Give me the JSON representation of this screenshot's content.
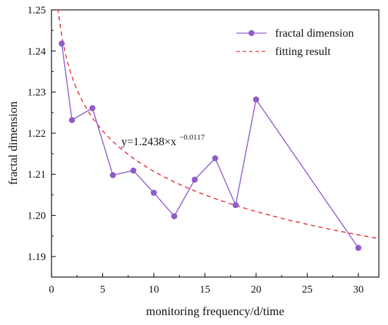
{
  "chart_data": {
    "type": "line",
    "title": "",
    "xlabel": "monitoring frequency/d/time",
    "ylabel": "fractal dimension",
    "xlim": [
      0,
      32
    ],
    "ylim": [
      1.185,
      1.25
    ],
    "xticks": [
      0,
      5,
      10,
      15,
      20,
      25,
      30
    ],
    "yticks": [
      1.19,
      1.2,
      1.21,
      1.22,
      1.23,
      1.24,
      1.25
    ],
    "x_tick_labels": [
      "0",
      "5",
      "10",
      "15",
      "20",
      "25",
      "30"
    ],
    "y_tick_labels": [
      "1.19",
      "1.20",
      "1.21",
      "1.22",
      "1.23",
      "1.24",
      "1.25"
    ],
    "grid": false,
    "legend_position": "top-right",
    "series": [
      {
        "name": "fractal dimension",
        "type": "line-marker",
        "color": "#8e5cc9",
        "x": [
          1,
          2,
          4,
          6,
          8,
          10,
          12,
          14,
          16,
          18,
          20,
          30
        ],
        "y": [
          1.2418,
          1.2232,
          1.2261,
          1.2098,
          1.2109,
          1.2055,
          1.1998,
          1.2087,
          1.2139,
          1.2025,
          1.2282,
          1.1921
        ]
      },
      {
        "name": "fitting result",
        "type": "dashed-line",
        "color": "#e8333a",
        "formula": {
          "a": 1.2438,
          "b": -0.0117
        },
        "x_range": [
          0.5,
          31.8
        ]
      }
    ],
    "annotations": [
      {
        "base": "y=1.2438×x",
        "exponent": "−0.0117"
      }
    ]
  }
}
